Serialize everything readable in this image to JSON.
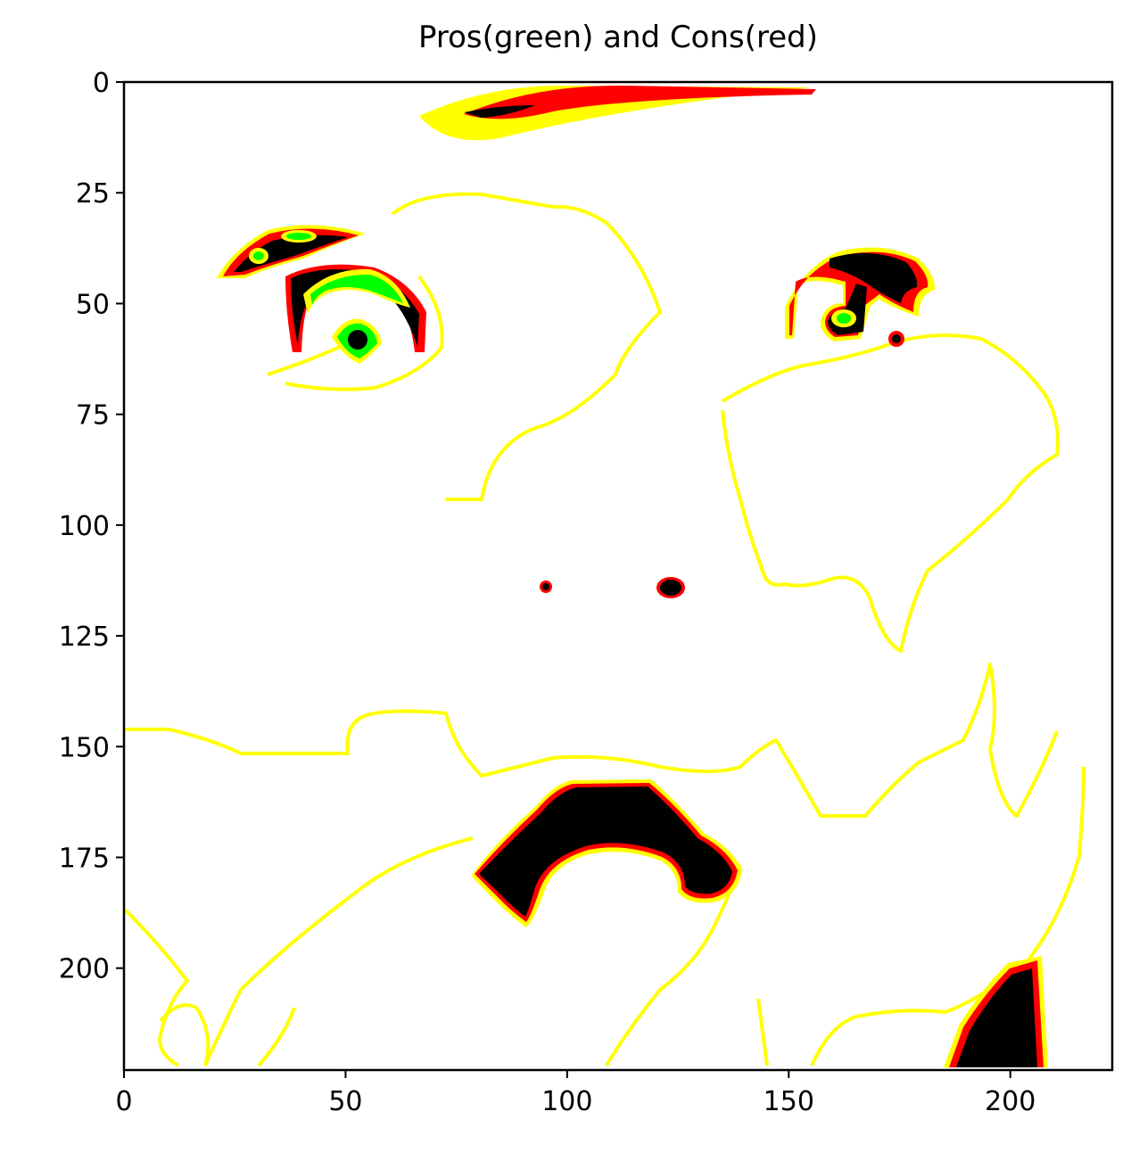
{
  "chart_data": {
    "type": "heatmap",
    "title": "Pros(green) and Cons(red)",
    "xlabel": "",
    "ylabel": "",
    "xlim": [
      0,
      223
    ],
    "ylim": [
      223,
      0
    ],
    "x_ticks": [
      0,
      50,
      100,
      150,
      200
    ],
    "y_ticks": [
      0,
      25,
      50,
      75,
      100,
      125,
      150,
      175,
      200
    ],
    "grid": false,
    "legend": "none",
    "colors": {
      "background": "#ffffff",
      "edge": "#ffff00",
      "pros": "#00ff00",
      "cons": "#ff0000",
      "dark": "#000000"
    }
  }
}
